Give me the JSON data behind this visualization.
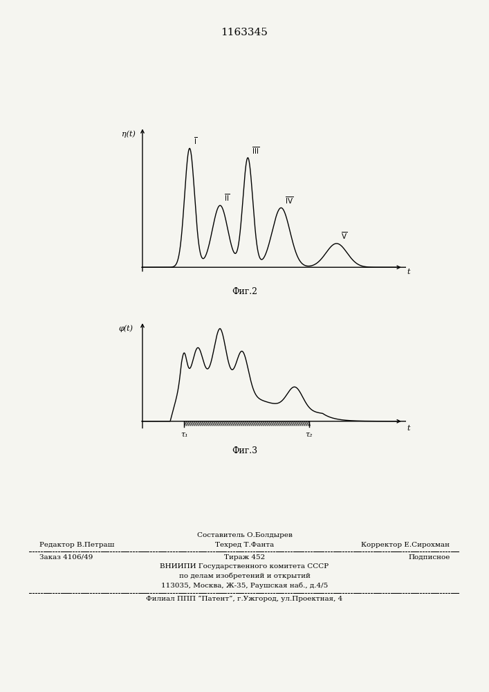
{
  "patent_number": "1163345",
  "fig2_ylabel": "η(t)",
  "fig2_xlabel": "t",
  "fig2_caption": "Фиг.2",
  "fig3_ylabel": "φ(t)",
  "fig3_xlabel": "t",
  "fig3_caption": "Фиг.3",
  "fig3_tau1": "τ₁",
  "fig3_tau2": "τ₂",
  "footer_line0_center": "Составитель О.Болдырев",
  "footer_line1_left": "Редактор В.Петраш",
  "footer_line1_center": "Техред Т.Фанта",
  "footer_line1_right": "Корректор Е.Сирохман",
  "footer_line2_left": "Заказ 4106/49",
  "footer_line2_center": "Тираж 452",
  "footer_line2_right": "Подписное",
  "footer_line3": "ВНИИПИ Государственного комитета СССР",
  "footer_line4": "по делам изобретений и открытий",
  "footer_line5": "113035, Москва, Ж-35, Раушская наб., д.4/5",
  "footer_line6": "Филиал ППП “Патент”, г.Ужгород, ул.Проектная, 4",
  "line_color": "#000000",
  "bg_color": "#f5f5f0"
}
